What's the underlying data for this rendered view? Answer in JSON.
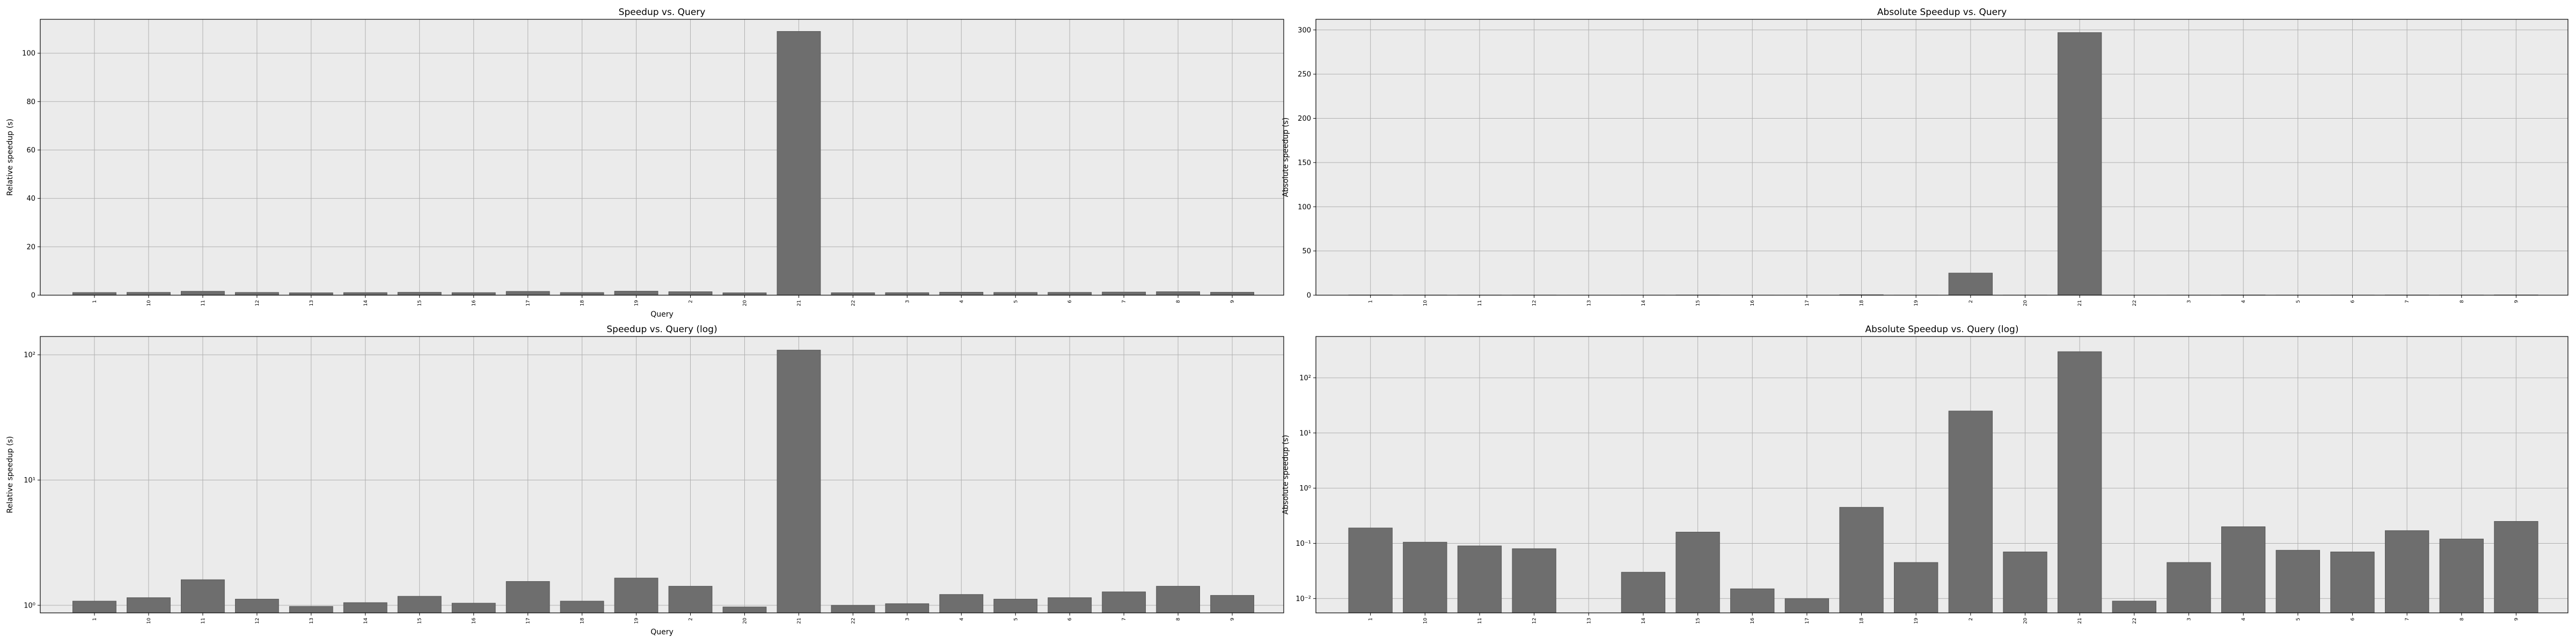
{
  "chart_data": [
    {
      "type": "bar",
      "title": "Speedup vs. Query",
      "xlabel": "Query",
      "ylabel": "Relative speedup (s)",
      "yscale": "linear",
      "ylim": [
        0,
        114
      ],
      "yticks": [
        0,
        20,
        40,
        60,
        80,
        100
      ],
      "yticklabels": [
        "0",
        "20",
        "40",
        "60",
        "80",
        "100"
      ],
      "grid": true,
      "categories": [
        "1",
        "10",
        "11",
        "12",
        "13",
        "14",
        "15",
        "16",
        "17",
        "18",
        "19",
        "2",
        "20",
        "21",
        "22",
        "3",
        "4",
        "5",
        "6",
        "7",
        "8",
        "9"
      ],
      "values": [
        1.08,
        1.15,
        1.6,
        1.12,
        0.98,
        1.05,
        1.18,
        1.04,
        1.55,
        1.08,
        1.65,
        1.42,
        0.97,
        109,
        1.0,
        1.03,
        1.22,
        1.12,
        1.15,
        1.28,
        1.42,
        1.2
      ]
    },
    {
      "type": "bar",
      "title": "Absolute Speedup vs. Query",
      "xlabel": "",
      "ylabel": "Absolute speedup (s)",
      "yscale": "linear",
      "ylim": [
        0,
        312
      ],
      "yticks": [
        0,
        50,
        100,
        150,
        200,
        250,
        300
      ],
      "yticklabels": [
        "0",
        "50",
        "100",
        "150",
        "200",
        "250",
        "300"
      ],
      "grid": true,
      "categories": [
        "1",
        "10",
        "11",
        "12",
        "13",
        "14",
        "15",
        "16",
        "17",
        "18",
        "19",
        "2",
        "20",
        "21",
        "22",
        "3",
        "4",
        "5",
        "6",
        "7",
        "8",
        "9"
      ],
      "values": [
        0.19,
        0.105,
        0.09,
        0.08,
        0.005,
        0.03,
        0.16,
        0.015,
        0.01,
        0.45,
        0.045,
        25,
        0.07,
        297,
        0.009,
        0.045,
        0.2,
        0.075,
        0.07,
        0.17,
        0.12,
        0.25
      ]
    },
    {
      "type": "bar",
      "title": "Speedup vs. Query (log)",
      "xlabel": "Query",
      "ylabel": "Relative speedup (s)",
      "yscale": "log",
      "ylim": [
        0.87,
        140
      ],
      "yticks": [
        1,
        10,
        100
      ],
      "yticklabels": [
        "10⁰",
        "10¹",
        "10²"
      ],
      "grid": true,
      "categories": [
        "1",
        "10",
        "11",
        "12",
        "13",
        "14",
        "15",
        "16",
        "17",
        "18",
        "19",
        "2",
        "20",
        "21",
        "22",
        "3",
        "4",
        "5",
        "6",
        "7",
        "8",
        "9"
      ],
      "values": [
        1.08,
        1.15,
        1.6,
        1.12,
        0.98,
        1.05,
        1.18,
        1.04,
        1.55,
        1.08,
        1.65,
        1.42,
        0.97,
        109,
        1.0,
        1.03,
        1.22,
        1.12,
        1.15,
        1.28,
        1.42,
        1.2
      ]
    },
    {
      "type": "bar",
      "title": "Absolute Speedup vs. Query (log)",
      "xlabel": "",
      "ylabel": "Absolute speedup (s)",
      "yscale": "log",
      "ylim": [
        0.0055,
        560
      ],
      "yticks": [
        0.01,
        0.1,
        1,
        10,
        100
      ],
      "yticklabels": [
        "10⁻²",
        "10⁻¹",
        "10⁰",
        "10¹",
        "10²"
      ],
      "grid": true,
      "categories": [
        "1",
        "10",
        "11",
        "12",
        "13",
        "14",
        "15",
        "16",
        "17",
        "18",
        "19",
        "2",
        "20",
        "21",
        "22",
        "3",
        "4",
        "5",
        "6",
        "7",
        "8",
        "9"
      ],
      "values": [
        0.19,
        0.105,
        0.09,
        0.08,
        0.005,
        0.03,
        0.16,
        0.015,
        0.01,
        0.45,
        0.045,
        25,
        0.07,
        297,
        0.009,
        0.045,
        0.2,
        0.075,
        0.07,
        0.17,
        0.12,
        0.25
      ]
    }
  ],
  "colors": {
    "bar_fill": "#6e6e6e",
    "bar_edge": "#555555",
    "plot_bg": "#ebebeb",
    "grid": "#b0b0b0"
  }
}
